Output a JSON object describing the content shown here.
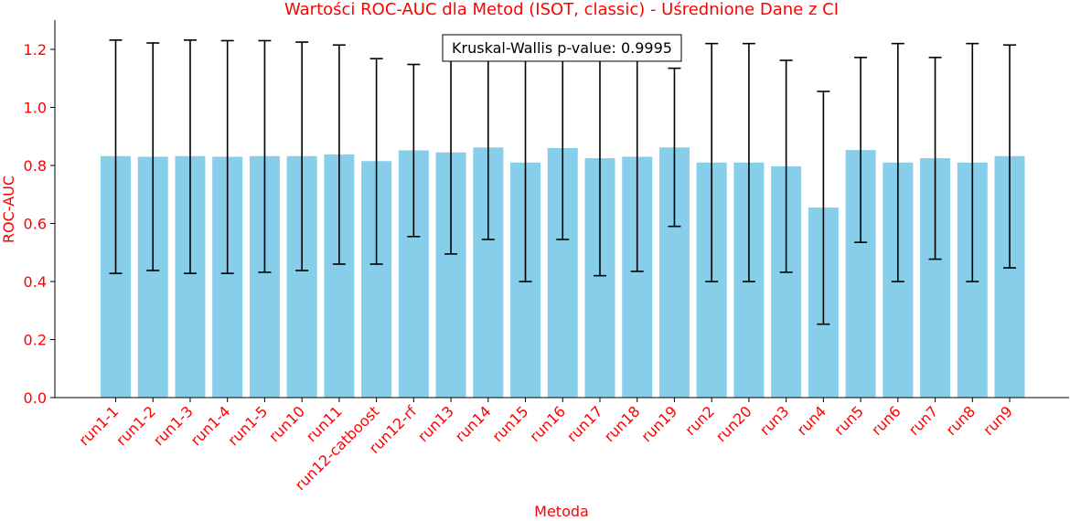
{
  "chart_data": {
    "type": "bar",
    "title": "Wartości ROC-AUC dla Metod (ISOT, classic) - Uśrednione Dane z CI",
    "xlabel": "Metoda",
    "ylabel": "ROC-AUC",
    "ylim": [
      0.0,
      1.29
    ],
    "yticks": [
      "0.0",
      "0.2",
      "0.4",
      "0.6",
      "0.8",
      "1.0",
      "1.2"
    ],
    "grid": false,
    "bar_color": "#87ceeb",
    "text_color": "#ff0000",
    "annotation": "Kruskal-Wallis p-value: 0.9995",
    "categories": [
      "run1-1",
      "run1-2",
      "run1-3",
      "run1-4",
      "run1-5",
      "run10",
      "run11",
      "run12-catboost",
      "run12-rf",
      "run13",
      "run14",
      "run15",
      "run16",
      "run17",
      "run18",
      "run19",
      "run2",
      "run20",
      "run3",
      "run4",
      "run5",
      "run6",
      "run7",
      "run8",
      "run9"
    ],
    "values": [
      0.832,
      0.83,
      0.832,
      0.83,
      0.832,
      0.832,
      0.838,
      0.815,
      0.852,
      0.845,
      0.862,
      0.81,
      0.86,
      0.825,
      0.83,
      0.862,
      0.81,
      0.81,
      0.797,
      0.655,
      0.853,
      0.81,
      0.825,
      0.81,
      0.832
    ],
    "ci_lower": [
      0.428,
      0.438,
      0.428,
      0.428,
      0.432,
      0.438,
      0.46,
      0.46,
      0.555,
      0.495,
      0.545,
      0.4,
      0.545,
      0.42,
      0.435,
      0.59,
      0.4,
      0.4,
      0.432,
      0.253,
      0.535,
      0.4,
      0.477,
      0.4,
      0.447
    ],
    "ci_upper": [
      1.232,
      1.222,
      1.232,
      1.23,
      1.23,
      1.225,
      1.215,
      1.168,
      1.148,
      1.195,
      1.175,
      1.22,
      1.175,
      1.23,
      1.225,
      1.135,
      1.22,
      1.22,
      1.162,
      1.055,
      1.172,
      1.22,
      1.172,
      1.22,
      1.215
    ]
  }
}
